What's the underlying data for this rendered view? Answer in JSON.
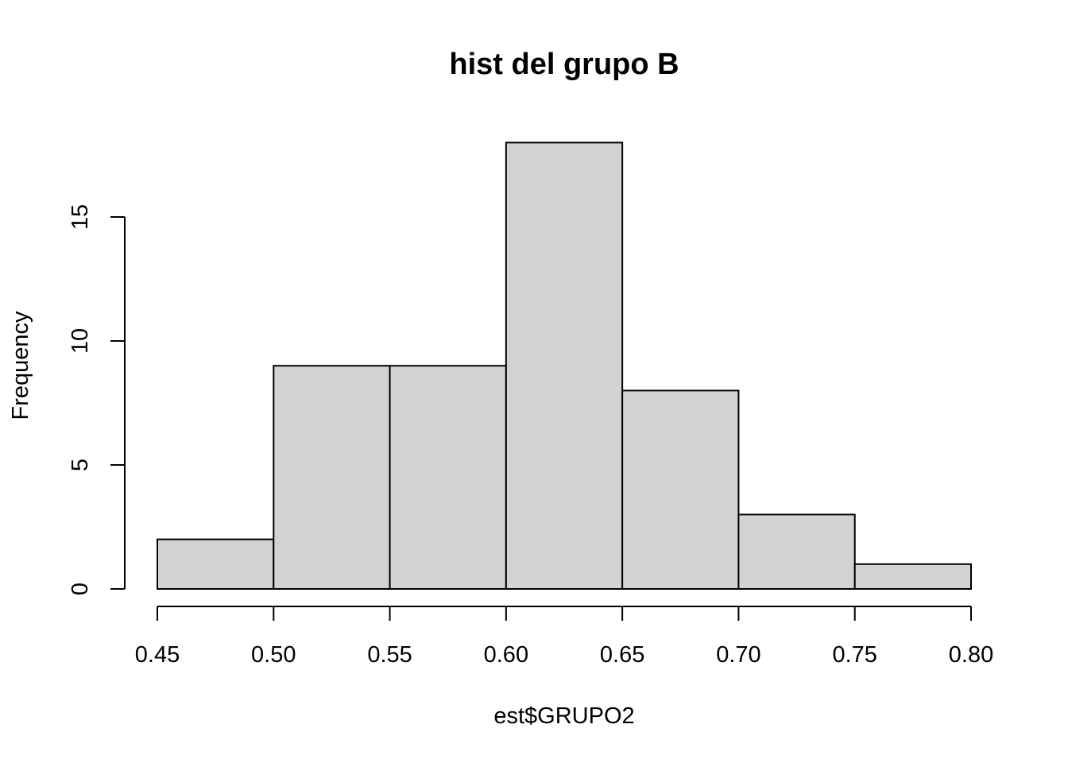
{
  "chart_data": {
    "type": "bar",
    "title": "hist del grupo B",
    "xlabel": "est$GRUPO2",
    "ylabel": "Frequency",
    "bins": [
      {
        "from": 0.45,
        "to": 0.5,
        "count": 2
      },
      {
        "from": 0.5,
        "to": 0.55,
        "count": 9
      },
      {
        "from": 0.55,
        "to": 0.6,
        "count": 9
      },
      {
        "from": 0.6,
        "to": 0.65,
        "count": 18
      },
      {
        "from": 0.65,
        "to": 0.7,
        "count": 8
      },
      {
        "from": 0.7,
        "to": 0.75,
        "count": 3
      },
      {
        "from": 0.75,
        "to": 0.8,
        "count": 1
      }
    ],
    "xlim": [
      0.45,
      0.8
    ],
    "ylim": [
      0,
      18
    ],
    "xticks": [
      "0.45",
      "0.50",
      "0.55",
      "0.60",
      "0.65",
      "0.70",
      "0.75",
      "0.80"
    ],
    "yticks": [
      "0",
      "5",
      "10",
      "15"
    ],
    "grid": false,
    "legend": "none",
    "colors": {
      "bar_fill": "#d3d3d3",
      "bar_stroke": "#000000"
    }
  }
}
